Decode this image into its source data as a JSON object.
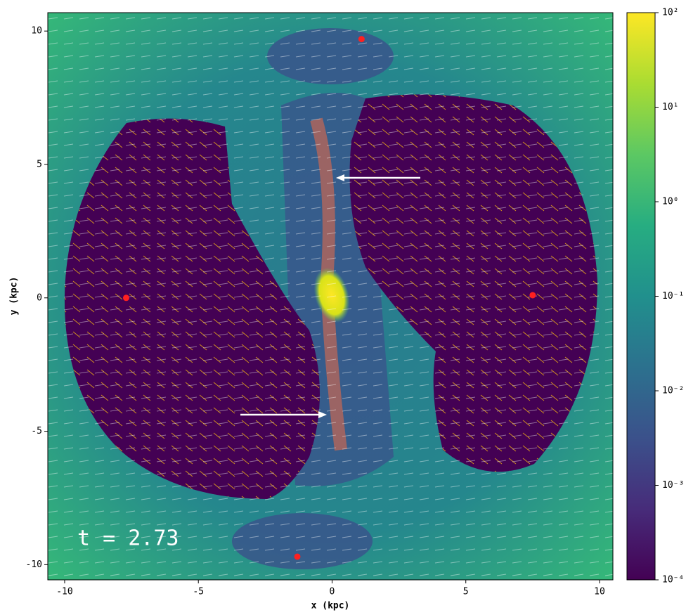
{
  "chart_data": {
    "type": "scatter",
    "x_label": "x (kpc)",
    "y_label": "y (kpc)",
    "annotation": "t = 2.73",
    "x": [
      1.1,
      -7.7,
      7.5,
      -1.3
    ],
    "values": [
      9.7,
      0.0,
      0.1,
      -9.7
    ],
    "color": "#ff2020",
    "xlim": [
      -10.63,
      10.5
    ],
    "ylim": [
      -10.57,
      10.69
    ],
    "xticks": [
      -10,
      -5,
      0,
      5,
      10
    ],
    "yticks": [
      -10,
      -5,
      0,
      5,
      10
    ],
    "colorbar": {
      "log": true,
      "lim": [
        0.0001,
        100
      ],
      "ticks": [
        {
          "value": 0.0001,
          "label": "10⁻⁴"
        },
        {
          "value": 0.001,
          "label": "10⁻³"
        },
        {
          "value": 0.01,
          "label": "10⁻²"
        },
        {
          "value": 0.1,
          "label": "10⁻¹"
        },
        {
          "value": 1,
          "label": "10⁰"
        },
        {
          "value": 10,
          "label": "10¹"
        },
        {
          "value": 100,
          "label": "10²"
        }
      ],
      "colors": [
        "#440154",
        "#472c7a",
        "#3b518b",
        "#2c718e",
        "#21908d",
        "#27ad81",
        "#5cc863",
        "#aadc32",
        "#fde725"
      ]
    }
  }
}
